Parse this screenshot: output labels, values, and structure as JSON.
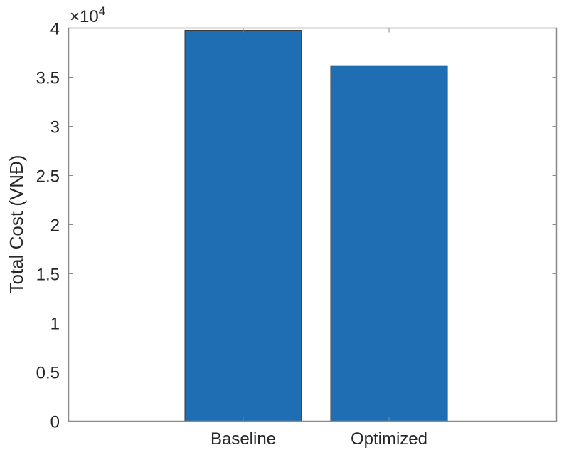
{
  "chart_data": {
    "type": "bar",
    "categories": [
      "Baseline",
      "Optimized"
    ],
    "values": [
      39780,
      36180
    ],
    "title": "",
    "xlabel": "",
    "ylabel": "Total Cost (VNĐ)",
    "ylim": [
      0,
      40000
    ],
    "yticks": [
      0,
      5000,
      10000,
      15000,
      20000,
      25000,
      30000,
      35000,
      40000
    ],
    "ytick_labels": [
      "0",
      "0.5",
      "1",
      "1.5",
      "2",
      "2.5",
      "3",
      "3.5",
      "4"
    ],
    "exponent_label": "×10",
    "exponent": "4",
    "grid": false,
    "bar_color": "#1f6eb4",
    "bar_edge_color": "#333333"
  }
}
